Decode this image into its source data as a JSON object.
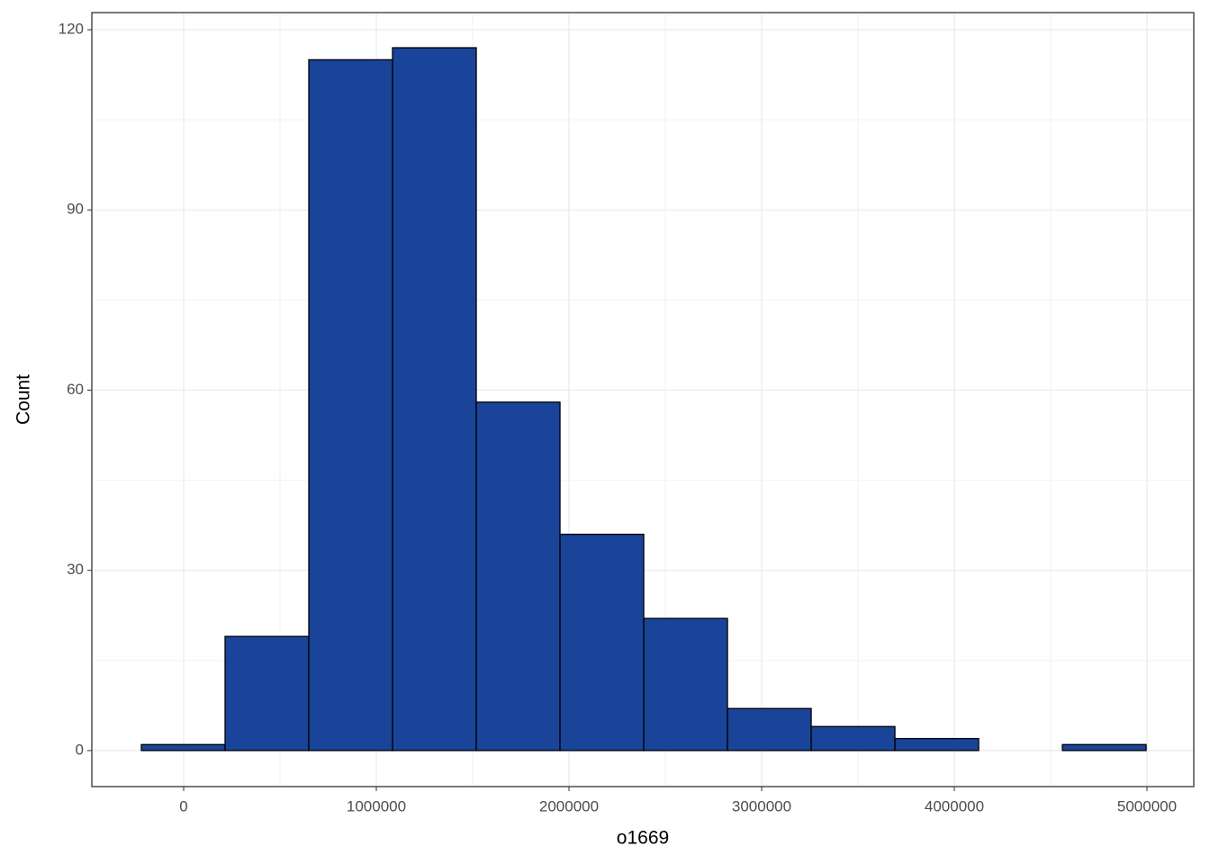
{
  "chart_data": {
    "type": "histogram",
    "x_label": "o1669",
    "y_label": "Count",
    "bins": [
      -219600,
      215000,
      649600,
      1084200,
      1518800,
      1953400,
      2388000,
      2822600,
      3257200,
      3691800,
      4126400,
      4561000,
      4995600
    ],
    "values": [
      1,
      19,
      115,
      117,
      58,
      36,
      22,
      7,
      4,
      2,
      0,
      1
    ],
    "color": "#1a4499",
    "xlim": [
      -476600,
      5243000
    ],
    "ylim": [
      -6,
      122.85
    ],
    "xticks": [
      0,
      1000000,
      2000000,
      3000000,
      4000000,
      5000000
    ],
    "yticks": [
      0,
      30,
      60,
      90,
      120
    ],
    "grid": true
  }
}
